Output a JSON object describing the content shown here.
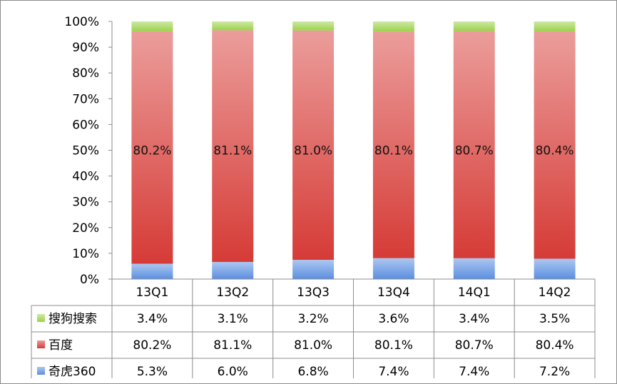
{
  "chart_data": {
    "type": "bar",
    "stacked": true,
    "percent_stacked": true,
    "categories": [
      "13Q1",
      "13Q2",
      "13Q3",
      "13Q4",
      "14Q1",
      "14Q2"
    ],
    "series": [
      {
        "name": "奇虎360",
        "values": [
          5.3,
          6.0,
          6.8,
          7.4,
          7.4,
          7.2
        ],
        "labels": [
          "5.3%",
          "6.0%",
          "6.8%",
          "7.4%",
          "7.4%",
          "7.2%"
        ],
        "color": "#5b8fe0"
      },
      {
        "name": "百度",
        "values": [
          80.2,
          81.1,
          81.0,
          80.1,
          80.7,
          80.4
        ],
        "labels": [
          "80.2%",
          "81.1%",
          "81.0%",
          "80.1%",
          "80.7%",
          "80.4%"
        ],
        "color": "#d63b36"
      },
      {
        "name": "搜狗搜索",
        "values": [
          3.4,
          3.1,
          3.2,
          3.6,
          3.4,
          3.5
        ],
        "labels": [
          "3.4%",
          "3.1%",
          "3.2%",
          "3.6%",
          "3.4%",
          "3.5%"
        ],
        "color": "#9bd24a"
      }
    ],
    "table_order": [
      "搜狗搜索",
      "百度",
      "奇虎360"
    ],
    "y_ticks": [
      "0%",
      "10%",
      "20%",
      "30%",
      "40%",
      "50%",
      "60%",
      "70%",
      "80%",
      "90%",
      "100%"
    ],
    "ylim": [
      0,
      100
    ],
    "grid": false,
    "legend": "data-table"
  }
}
